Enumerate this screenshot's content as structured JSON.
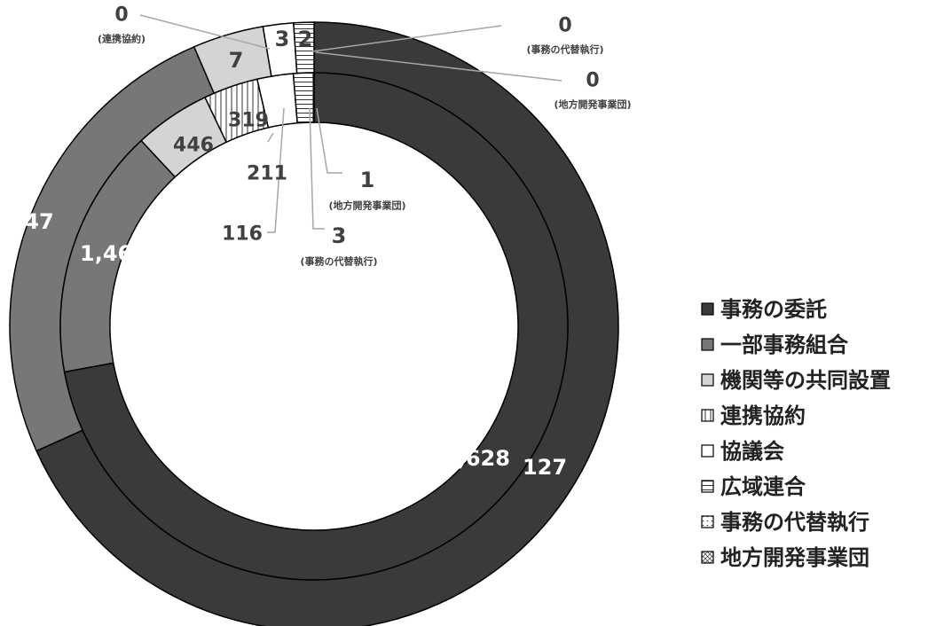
{
  "chart_data": {
    "type": "doughnut",
    "categories": [
      "事務の委託",
      "一部事務組合",
      "機関等の共同設置",
      "連携協約",
      "協議会",
      "広域連合",
      "事務の代替執行",
      "地方開発事業団"
    ],
    "series": [
      {
        "ring": "inner",
        "values": [
          6628,
          1466,
          446,
          319,
          211,
          116,
          3,
          1
        ]
      },
      {
        "ring": "outer",
        "values": [
          127,
          47,
          7,
          0,
          3,
          2,
          0,
          0
        ]
      }
    ],
    "inner_labels": {
      "v0": "6,628",
      "v1": "1,466",
      "v2": "446",
      "v3": "319",
      "v4": "211",
      "v5": "116",
      "v6": "3",
      "v6_note": "(事務の代替執行)",
      "v7": "1",
      "v7_note": "(地方開発事業団)"
    },
    "outer_labels": {
      "v0": "127",
      "v1": "47",
      "v2": "7",
      "v3": "0",
      "v3_note": "(連携協約)",
      "v4": "3",
      "v5": "2",
      "v6": "0",
      "v6_note": "(事務の代替執行)",
      "v7": "0",
      "v7_note": "(地方開発事業団)"
    },
    "legend": [
      "事務の委託",
      "一部事務組合",
      "機関等の共同設置",
      "連携協約",
      "協議会",
      "広域連合",
      "事務の代替執行",
      "地方開発事業団"
    ],
    "legend_position": "right",
    "colors": [
      "#3a3a3a",
      "#777777",
      "#d4d4d4",
      "#ffffff",
      "#ffffff",
      "#ffffff",
      "#ffffff",
      "#ffffff"
    ],
    "fills": [
      "solid",
      "solid",
      "solid",
      "vertical-lines",
      "solid",
      "horizontal-lines",
      "dots",
      "cross-hatch"
    ]
  }
}
